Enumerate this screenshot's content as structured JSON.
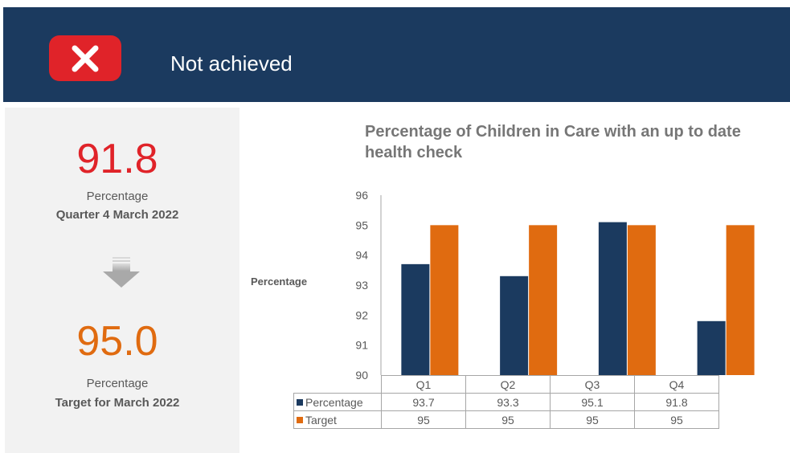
{
  "status": {
    "label": "Not achieved",
    "icon": "close-icon",
    "badge_color": "#e02329"
  },
  "kpi": {
    "actual_value": "91.8",
    "actual_label": "Percentage",
    "actual_period": "Quarter 4 March 2022",
    "trend_icon": "arrow-down-icon",
    "target_value": "95.0",
    "target_label": "Percentage",
    "target_period": "Target for March 2022"
  },
  "colors": {
    "header": "#1b3a5f",
    "percentage": "#1b3a5f",
    "target": "#e06b10",
    "fail": "#e02329"
  },
  "chart_data": {
    "type": "bar",
    "title": "Percentage of Children in Care with an up to date health check",
    "ylabel": "Percentage",
    "xlabel": "",
    "ylim": [
      90,
      96
    ],
    "yticks": [
      "90",
      "91",
      "92",
      "93",
      "94",
      "95",
      "96"
    ],
    "categories": [
      "Q1",
      "Q2",
      "Q3",
      "Q4"
    ],
    "series": [
      {
        "name": "Percentage",
        "values": [
          93.7,
          93.3,
          95.1,
          91.8
        ],
        "display": [
          "93.7",
          "93.3",
          "95.1",
          "91.8"
        ]
      },
      {
        "name": "Target",
        "values": [
          95,
          95,
          95,
          95
        ],
        "display": [
          "95",
          "95",
          "95",
          "95"
        ]
      }
    ],
    "legend": "data-table"
  }
}
